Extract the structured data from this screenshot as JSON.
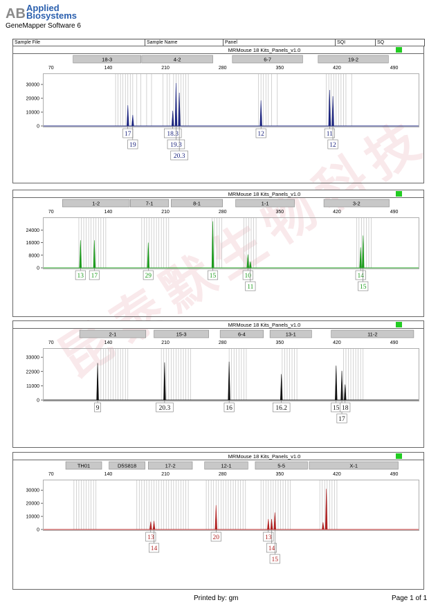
{
  "brand": {
    "line1": "Applied",
    "line2": "Biosystems",
    "mark": "AB"
  },
  "software": "GeneMapper Software 6",
  "header": {
    "sample_file": "Sample File",
    "sample_name": "Sample Name",
    "panel": "Panel",
    "sqi": "SQI",
    "sq": "SQ"
  },
  "watermark": "昆泰默生物科技",
  "colors": {
    "blue": "#1a237e",
    "green": "#1c9c1c",
    "black": "#111111",
    "red": "#b01f1f",
    "status": "#22cc22"
  },
  "footer": {
    "printed_by": "Printed by: gm",
    "page": "Page 1 of 1"
  },
  "chart_data": [
    {
      "type": "line",
      "panel_name": "MRMouse 18 Kits_Panels_v1.0",
      "color": "#1a237e",
      "x_ticks": [
        70,
        140,
        210,
        280,
        350,
        420,
        490
      ],
      "y_ticks": [
        0,
        10000,
        20000,
        30000
      ],
      "ylim": [
        0,
        38000
      ],
      "xlim": [
        60,
        520
      ],
      "markers": [
        {
          "label": "18-3",
          "start": 97,
          "end": 180
        },
        {
          "label": "4-2",
          "start": 181,
          "end": 268
        },
        {
          "label": "6-7",
          "start": 292,
          "end": 378
        },
        {
          "label": "19-2",
          "start": 397,
          "end": 483
        }
      ],
      "bins": [
        149,
        152,
        155,
        158,
        161,
        164,
        167,
        170,
        175,
        180,
        187,
        193,
        207,
        212,
        215,
        220,
        223,
        226,
        229,
        232,
        235,
        238,
        324,
        327,
        330,
        333,
        336,
        340,
        347,
        407,
        410,
        413,
        416,
        419,
        422,
        425,
        428,
        431,
        438
      ],
      "peaks": [
        {
          "x": 164,
          "y": 15000
        },
        {
          "x": 170,
          "y": 8000
        },
        {
          "x": 219,
          "y": 11000
        },
        {
          "x": 223,
          "y": 31000
        },
        {
          "x": 227,
          "y": 24000
        },
        {
          "x": 327,
          "y": 18500
        },
        {
          "x": 411,
          "y": 26000
        },
        {
          "x": 415,
          "y": 21500
        }
      ],
      "labels": [
        {
          "text": "17",
          "x": 164,
          "row": 0
        },
        {
          "text": "19",
          "x": 170,
          "row": 1
        },
        {
          "text": "18.3",
          "x": 219,
          "row": 0
        },
        {
          "text": "19.3",
          "x": 223,
          "row": 1
        },
        {
          "text": "20.3",
          "x": 227,
          "row": 2
        },
        {
          "text": "12",
          "x": 327,
          "row": 0
        },
        {
          "text": "11",
          "x": 411,
          "row": 0
        },
        {
          "text": "12",
          "x": 415,
          "row": 1
        }
      ]
    },
    {
      "type": "line",
      "panel_name": "MRMouse 18 Kits_Panels_v1.0",
      "color": "#1c9c1c",
      "x_ticks": [
        70,
        140,
        210,
        280,
        350,
        420,
        490
      ],
      "y_ticks": [
        0,
        8000,
        16000,
        24000
      ],
      "ylim": [
        0,
        32000
      ],
      "xlim": [
        60,
        520
      ],
      "markers": [
        {
          "label": "1-2",
          "start": 84,
          "end": 166
        },
        {
          "label": "7-1",
          "start": 167,
          "end": 214
        },
        {
          "label": "8-1",
          "start": 217,
          "end": 280
        },
        {
          "label": "1-1",
          "start": 296,
          "end": 368
        },
        {
          "label": "3-2",
          "start": 404,
          "end": 484
        }
      ],
      "bins": [
        104,
        107,
        110,
        113,
        116,
        119,
        122,
        125,
        128,
        131,
        134,
        137,
        181,
        184,
        187,
        190,
        193,
        196,
        199,
        202,
        205,
        208,
        211,
        214,
        267,
        270,
        273,
        276,
        279,
        306,
        309,
        312,
        315,
        318,
        321,
        444,
        447,
        450,
        453,
        456,
        459,
        462
      ],
      "peaks": [
        {
          "x": 106,
          "y": 17500
        },
        {
          "x": 123,
          "y": 17500
        },
        {
          "x": 189,
          "y": 16000
        },
        {
          "x": 268,
          "y": 29500
        },
        {
          "x": 311,
          "y": 8500
        },
        {
          "x": 314,
          "y": 4000
        },
        {
          "x": 449,
          "y": 13000
        },
        {
          "x": 452,
          "y": 20500
        }
      ],
      "labels": [
        {
          "text": "13",
          "x": 106,
          "row": 0
        },
        {
          "text": "17",
          "x": 123,
          "row": 0
        },
        {
          "text": "29",
          "x": 189,
          "row": 0
        },
        {
          "text": "15",
          "x": 268,
          "row": 0
        },
        {
          "text": "10",
          "x": 311,
          "row": 0
        },
        {
          "text": "11",
          "x": 314,
          "row": 1
        },
        {
          "text": "14",
          "x": 449,
          "row": 0
        },
        {
          "text": "15",
          "x": 452,
          "row": 1
        }
      ]
    },
    {
      "type": "line",
      "panel_name": "MRMouse 18 Kits_Panels_v1.0",
      "color": "#111111",
      "x_ticks": [
        70,
        140,
        210,
        280,
        350,
        420,
        490
      ],
      "y_ticks": [
        0,
        11000,
        22000,
        33000
      ],
      "ylim": [
        0,
        40000
      ],
      "xlim": [
        60,
        520
      ],
      "markers": [
        {
          "label": "2-1",
          "start": 105,
          "end": 186
        },
        {
          "label": "15-3",
          "start": 196,
          "end": 263
        },
        {
          "label": "6-4",
          "start": 277,
          "end": 330
        },
        {
          "label": "13-1",
          "start": 338,
          "end": 389
        },
        {
          "label": "11-2",
          "start": 413,
          "end": 514
        }
      ],
      "bins": [
        131,
        134,
        137,
        140,
        143,
        146,
        149,
        152,
        155,
        158,
        161,
        164,
        205,
        208,
        211,
        214,
        217,
        220,
        223,
        226,
        229,
        232,
        235,
        238,
        241,
        288,
        291,
        294,
        297,
        300,
        303,
        306,
        309,
        353,
        356,
        359,
        362,
        365,
        368,
        371,
        428,
        431,
        434,
        437,
        440,
        443,
        446,
        449,
        452
      ],
      "peaks": [
        {
          "x": 127,
          "y": 28500
        },
        {
          "x": 209,
          "y": 29000
        },
        {
          "x": 288,
          "y": 29500
        },
        {
          "x": 352,
          "y": 20000
        },
        {
          "x": 419,
          "y": 26500
        },
        {
          "x": 426,
          "y": 22500
        },
        {
          "x": 430,
          "y": 12000
        }
      ],
      "labels": [
        {
          "text": "9",
          "x": 127,
          "row": 0
        },
        {
          "text": "20.3",
          "x": 209,
          "row": 0
        },
        {
          "text": "16",
          "x": 288,
          "row": 0
        },
        {
          "text": "16.2",
          "x": 352,
          "row": 0
        },
        {
          "text": "15",
          "x": 419,
          "row": 0
        },
        {
          "text": "17",
          "x": 426,
          "row": 1
        },
        {
          "text": "18",
          "x": 430,
          "row": 0
        }
      ]
    },
    {
      "type": "line",
      "panel_name": "MRMouse 18 Kits_Panels_v1.0",
      "color": "#b01f1f",
      "x_ticks": [
        70,
        140,
        210,
        280,
        350,
        420,
        490
      ],
      "y_ticks": [
        0,
        10000,
        20000,
        30000
      ],
      "ylim": [
        0,
        38000
      ],
      "xlim": [
        60,
        520
      ],
      "markers": [
        {
          "label": "TH01",
          "start": 88,
          "end": 132
        },
        {
          "label": "D5S818",
          "start": 141,
          "end": 185
        },
        {
          "label": "17-2",
          "start": 189,
          "end": 243
        },
        {
          "label": "12-1",
          "start": 258,
          "end": 311
        },
        {
          "label": "5-5",
          "start": 320,
          "end": 384
        },
        {
          "label": "X-1",
          "start": 386,
          "end": 495
        }
      ],
      "bins": [
        98,
        101,
        104,
        107,
        110,
        113,
        116,
        119,
        122,
        125,
        175,
        178,
        181,
        184,
        187,
        190,
        193,
        196,
        199,
        202,
        205,
        208,
        211,
        214,
        217,
        220,
        223,
        226,
        229,
        232,
        235,
        238,
        260,
        263,
        266,
        269,
        272,
        275,
        278,
        281,
        284,
        287,
        290,
        293,
        296,
        299,
        302,
        305,
        308,
        327,
        330,
        333,
        336,
        339,
        342,
        345,
        348,
        351,
        354,
        357,
        360,
        363,
        399,
        402,
        405,
        408,
        411,
        414,
        417,
        420
      ],
      "peaks": [
        {
          "x": 192,
          "y": 6000
        },
        {
          "x": 196,
          "y": 6500
        },
        {
          "x": 272,
          "y": 18500
        },
        {
          "x": 336,
          "y": 8000
        },
        {
          "x": 340,
          "y": 8000
        },
        {
          "x": 344,
          "y": 13000
        },
        {
          "x": 403,
          "y": 5500
        },
        {
          "x": 407,
          "y": 31000
        }
      ],
      "labels": [
        {
          "text": "13",
          "x": 192,
          "row": 0
        },
        {
          "text": "14",
          "x": 196,
          "row": 1
        },
        {
          "text": "20",
          "x": 272,
          "row": 0
        },
        {
          "text": "13",
          "x": 336,
          "row": 0
        },
        {
          "text": "14",
          "x": 340,
          "row": 1
        },
        {
          "text": "15",
          "x": 344,
          "row": 2
        }
      ]
    }
  ]
}
